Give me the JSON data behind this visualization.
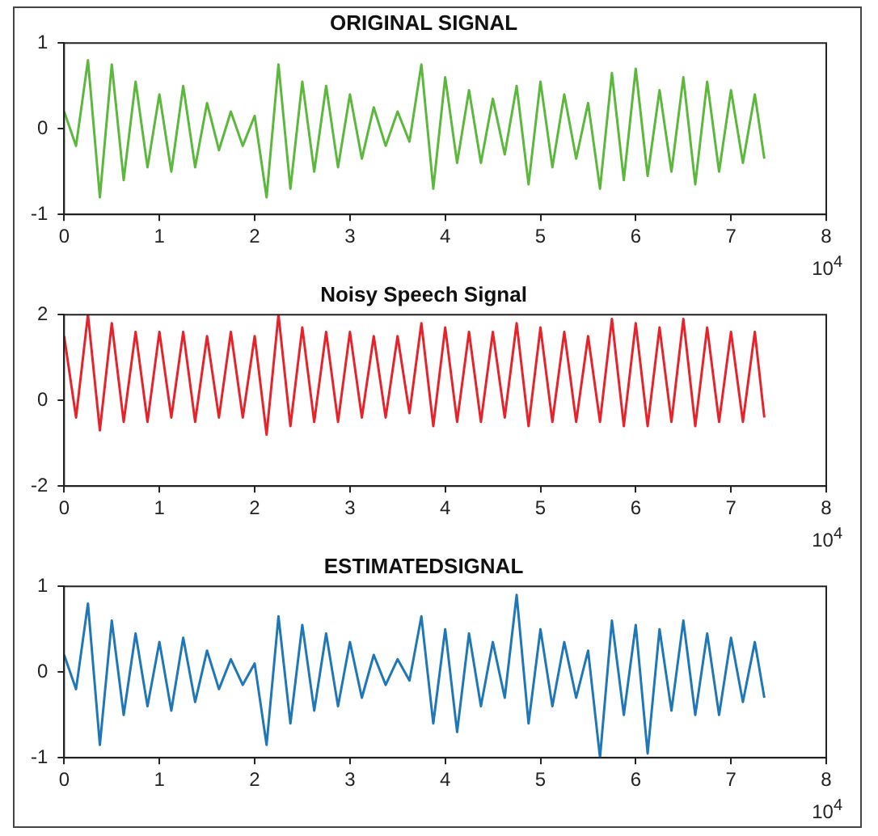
{
  "chart_data": [
    {
      "type": "line",
      "title": "ORIGINAL SIGNAL",
      "x": [
        0,
        0.125,
        0.25,
        0.375,
        0.5,
        0.625,
        0.75,
        0.875,
        1,
        1.125,
        1.25,
        1.375,
        1.5,
        1.625,
        1.75,
        1.875,
        2,
        2.125,
        2.25,
        2.375,
        2.5,
        2.625,
        2.75,
        2.875,
        3,
        3.125,
        3.25,
        3.375,
        3.5,
        3.625,
        3.75,
        3.875,
        4,
        4.125,
        4.25,
        4.375,
        4.5,
        4.625,
        4.75,
        4.875,
        5,
        5.125,
        5.25,
        5.375,
        5.5,
        5.625,
        5.75,
        5.875,
        6,
        6.125,
        6.25,
        6.375,
        6.5,
        6.625,
        6.75,
        6.875,
        7,
        7.125,
        7.25,
        7.35
      ],
      "series": [
        {
          "color": "#5cb83c",
          "values": [
            0.2,
            -0.2,
            0.8,
            -0.8,
            0.75,
            -0.6,
            0.55,
            -0.45,
            0.4,
            -0.5,
            0.5,
            -0.45,
            0.3,
            -0.25,
            0.2,
            -0.2,
            0.15,
            -0.8,
            0.75,
            -0.7,
            0.55,
            -0.5,
            0.5,
            -0.45,
            0.4,
            -0.35,
            0.25,
            -0.2,
            0.2,
            -0.15,
            0.75,
            -0.7,
            0.6,
            -0.4,
            0.45,
            -0.4,
            0.35,
            -0.3,
            0.5,
            -0.65,
            0.55,
            -0.45,
            0.4,
            -0.35,
            0.3,
            -0.7,
            0.65,
            -0.6,
            0.7,
            -0.55,
            0.45,
            -0.5,
            0.6,
            -0.65,
            0.55,
            -0.5,
            0.45,
            -0.4,
            0.4,
            -0.35
          ]
        }
      ],
      "xlim": [
        0,
        8
      ],
      "xticks": [
        0,
        1,
        2,
        3,
        4,
        5,
        6,
        7,
        8
      ],
      "ylim": [
        -1,
        1
      ],
      "yticks": [
        -1,
        0,
        1
      ],
      "grid": false,
      "legend": false,
      "marker": "none",
      "line_style": "solid",
      "annotations": [
        "10$^{4}$"
      ]
    },
    {
      "type": "line",
      "title": "Noisy Speech Signal",
      "x": [
        0,
        0.125,
        0.25,
        0.375,
        0.5,
        0.625,
        0.75,
        0.875,
        1,
        1.125,
        1.25,
        1.375,
        1.5,
        1.625,
        1.75,
        1.875,
        2,
        2.125,
        2.25,
        2.375,
        2.5,
        2.625,
        2.75,
        2.875,
        3,
        3.125,
        3.25,
        3.375,
        3.5,
        3.625,
        3.75,
        3.875,
        4,
        4.125,
        4.25,
        4.375,
        4.5,
        4.625,
        4.75,
        4.875,
        5,
        5.125,
        5.25,
        5.375,
        5.5,
        5.625,
        5.75,
        5.875,
        6,
        6.125,
        6.25,
        6.375,
        6.5,
        6.625,
        6.75,
        6.875,
        7,
        7.125,
        7.25,
        7.35
      ],
      "series": [
        {
          "color": "#e8222a",
          "values": [
            1.5,
            -0.4,
            2.0,
            -0.7,
            1.8,
            -0.5,
            1.6,
            -0.5,
            1.6,
            -0.4,
            1.6,
            -0.5,
            1.5,
            -0.4,
            1.6,
            -0.4,
            1.5,
            -0.8,
            2.0,
            -0.6,
            1.7,
            -0.5,
            1.6,
            -0.5,
            1.6,
            -0.4,
            1.5,
            -0.4,
            1.5,
            -0.3,
            1.8,
            -0.6,
            1.7,
            -0.5,
            1.6,
            -0.5,
            1.6,
            -0.4,
            1.8,
            -0.6,
            1.7,
            -0.5,
            1.6,
            -0.5,
            1.5,
            -0.5,
            1.9,
            -0.6,
            1.8,
            -0.6,
            1.7,
            -0.5,
            1.9,
            -0.6,
            1.7,
            -0.5,
            1.6,
            -0.5,
            1.6,
            -0.4
          ]
        }
      ],
      "xlim": [
        0,
        8
      ],
      "xticks": [
        0,
        1,
        2,
        3,
        4,
        5,
        6,
        7,
        8
      ],
      "ylim": [
        -2,
        2
      ],
      "yticks": [
        -2,
        0,
        2
      ],
      "grid": false,
      "legend": false,
      "marker": "none",
      "line_style": "solid",
      "annotations": [
        "10$^{4}$"
      ]
    },
    {
      "type": "line",
      "title": "ESTIMATEDSIGNAL",
      "x": [
        0,
        0.125,
        0.25,
        0.375,
        0.5,
        0.625,
        0.75,
        0.875,
        1,
        1.125,
        1.25,
        1.375,
        1.5,
        1.625,
        1.75,
        1.875,
        2,
        2.125,
        2.25,
        2.375,
        2.5,
        2.625,
        2.75,
        2.875,
        3,
        3.125,
        3.25,
        3.375,
        3.5,
        3.625,
        3.75,
        3.875,
        4,
        4.125,
        4.25,
        4.375,
        4.5,
        4.625,
        4.75,
        4.875,
        5,
        5.125,
        5.25,
        5.375,
        5.5,
        5.625,
        5.75,
        5.875,
        6,
        6.125,
        6.25,
        6.375,
        6.5,
        6.625,
        6.75,
        6.875,
        7,
        7.125,
        7.25,
        7.35
      ],
      "series": [
        {
          "color": "#1f77b8",
          "values": [
            0.2,
            -0.2,
            0.8,
            -0.85,
            0.6,
            -0.5,
            0.45,
            -0.4,
            0.35,
            -0.45,
            0.4,
            -0.35,
            0.25,
            -0.2,
            0.15,
            -0.15,
            0.1,
            -0.85,
            0.65,
            -0.6,
            0.55,
            -0.45,
            0.45,
            -0.4,
            0.35,
            -0.3,
            0.2,
            -0.15,
            0.15,
            -0.1,
            0.65,
            -0.6,
            0.5,
            -0.7,
            0.45,
            -0.4,
            0.35,
            -0.3,
            0.9,
            -0.6,
            0.5,
            -0.4,
            0.35,
            -0.3,
            0.25,
            -1.0,
            0.6,
            -0.5,
            0.55,
            -0.95,
            0.5,
            -0.45,
            0.6,
            -0.5,
            0.45,
            -0.5,
            0.4,
            -0.35,
            0.35,
            -0.3
          ]
        }
      ],
      "xlim": [
        0,
        8
      ],
      "xticks": [
        0,
        1,
        2,
        3,
        4,
        5,
        6,
        7,
        8
      ],
      "ylim": [
        -1,
        1
      ],
      "yticks": [
        -1,
        0,
        1
      ],
      "grid": false,
      "legend": false,
      "marker": "none",
      "line_style": "solid",
      "annotations": [
        "10$^{4}$"
      ]
    }
  ]
}
